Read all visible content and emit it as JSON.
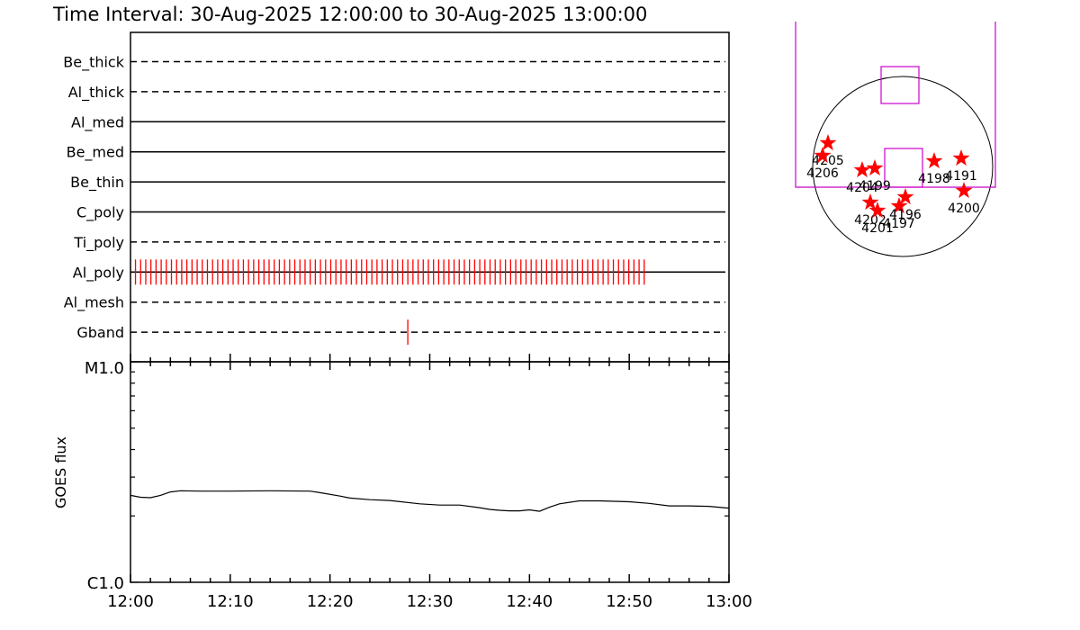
{
  "title": "Time Interval: 30-Aug-2025 12:00:00 to 30-Aug-2025 13:00:00",
  "filters": [
    {
      "name": "Be_thick",
      "style": "dashed"
    },
    {
      "name": "Al_thick",
      "style": "dashed"
    },
    {
      "name": "Al_med",
      "style": "solid"
    },
    {
      "name": "Be_med",
      "style": "solid"
    },
    {
      "name": "Be_thin",
      "style": "solid"
    },
    {
      "name": "C_poly",
      "style": "solid"
    },
    {
      "name": "Ti_poly",
      "style": "dashed"
    },
    {
      "name": "Al_poly",
      "style": "solid"
    },
    {
      "name": "Al_mesh",
      "style": "dashed"
    },
    {
      "name": "Gband",
      "style": "dashed"
    }
  ],
  "colors": {
    "mark": "#ff0000",
    "fov": "#cc00cc",
    "axis": "#000000"
  },
  "chart_data": [
    {
      "type": "timeline",
      "x_range": [
        "12:00",
        "13:00"
      ],
      "observations": {
        "Al_poly": {
          "start_min": 0.5,
          "end_min": 51.5,
          "count": 100
        },
        "Gband": {
          "times_min": [
            27.8
          ]
        }
      }
    },
    {
      "type": "line",
      "ylabel": "GOES flux",
      "yscale": "log",
      "ylim_labels": [
        "C1.0",
        "M1.0"
      ],
      "ylim": [
        1e-06,
        1e-05
      ],
      "x_range": [
        "12:00",
        "13:00"
      ],
      "xticks": [
        "12:00",
        "12:10",
        "12:20",
        "12:30",
        "12:40",
        "12:50",
        "13:00"
      ],
      "series": [
        {
          "x_min": [
            0,
            1,
            2,
            3,
            4,
            5,
            7,
            10,
            14,
            18,
            19,
            21,
            22,
            24,
            26,
            29,
            31,
            33,
            35,
            36,
            37,
            38,
            39,
            40,
            41,
            42,
            43,
            45,
            47,
            50,
            52,
            54,
            56,
            58,
            60
          ],
          "y": [
            2.48e-06,
            2.43e-06,
            2.42e-06,
            2.48e-06,
            2.57e-06,
            2.6e-06,
            2.59e-06,
            2.59e-06,
            2.6e-06,
            2.59e-06,
            2.55e-06,
            2.46e-06,
            2.41e-06,
            2.37e-06,
            2.35e-06,
            2.27e-06,
            2.24e-06,
            2.24e-06,
            2.18e-06,
            2.14e-06,
            2.12e-06,
            2.11e-06,
            2.11e-06,
            2.13e-06,
            2.1e-06,
            2.19e-06,
            2.27e-06,
            2.34e-06,
            2.34e-06,
            2.32e-06,
            2.28e-06,
            2.22e-06,
            2.22e-06,
            2.21e-06,
            2.17e-06
          ]
        }
      ]
    },
    {
      "type": "scatter",
      "subtype": "solar_disk_active_regions",
      "points": [
        {
          "label": "4205",
          "x": -0.83,
          "y": 0.26
        },
        {
          "label": "4206",
          "x": -0.89,
          "y": 0.12
        },
        {
          "label": "4204",
          "x": -0.45,
          "y": -0.04
        },
        {
          "label": "4199",
          "x": -0.31,
          "y": -0.02
        },
        {
          "label": "4198",
          "x": 0.35,
          "y": 0.06
        },
        {
          "label": "4191",
          "x": 0.65,
          "y": 0.09
        },
        {
          "label": "4202",
          "x": -0.36,
          "y": -0.4
        },
        {
          "label": "4201",
          "x": -0.28,
          "y": -0.49
        },
        {
          "label": "4197",
          "x": -0.04,
          "y": -0.44
        },
        {
          "label": "4196",
          "x": 0.03,
          "y": -0.34
        },
        {
          "label": "4200",
          "x": 0.68,
          "y": -0.27
        }
      ]
    }
  ]
}
